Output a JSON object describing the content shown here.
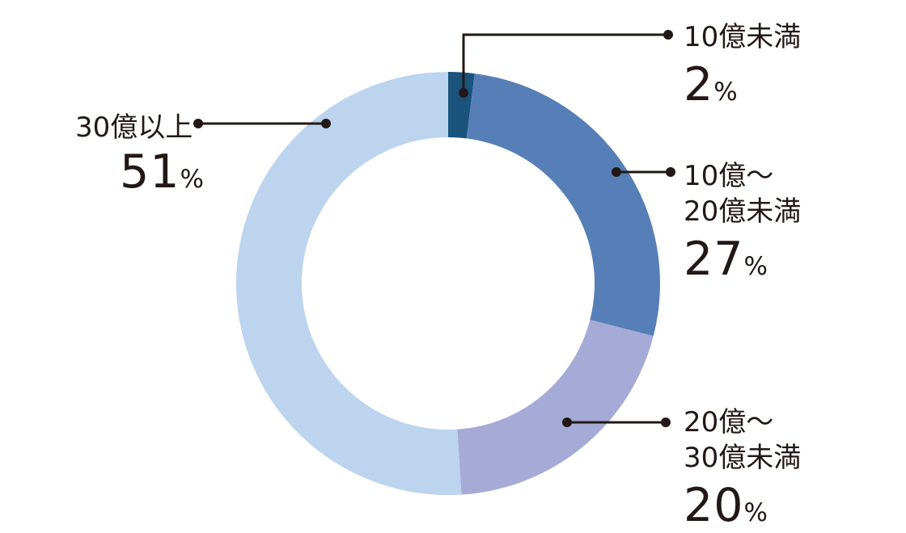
{
  "chart_data": {
    "type": "pie",
    "variant": "donut",
    "title": "",
    "unit": "%",
    "start_angle": "top",
    "direction": "clockwise",
    "categories": [
      "10億未満",
      "10億〜20億未満",
      "20億〜30億未満",
      "30億以上"
    ],
    "values": [
      2,
      27,
      20,
      51
    ],
    "colors": [
      "#1a547d",
      "#567fb7",
      "#a5aad7",
      "#bcd4ee"
    ],
    "segments": [
      {
        "label_line1": "10億未満",
        "value": "2",
        "unit": "%",
        "color": "#1a547d",
        "percent": 2
      },
      {
        "label_line1": "10億〜",
        "label_line2": "20億未満",
        "value": "27",
        "unit": "%",
        "color": "#567fb7",
        "percent": 27
      },
      {
        "label_line1": "20億〜",
        "label_line2": "30億未満",
        "value": "20",
        "unit": "%",
        "color": "#a5aad7",
        "percent": 20
      },
      {
        "label_line1": "30億以上",
        "value": "51",
        "unit": "%",
        "color": "#bcd4ee",
        "percent": 51
      }
    ],
    "legend_position": "callouts",
    "grid": false
  },
  "styles": {
    "background_color": "#ffffff",
    "text_color": "#231815",
    "callout_line_color": "#231815",
    "donut_hole_color": "#ffffff"
  }
}
